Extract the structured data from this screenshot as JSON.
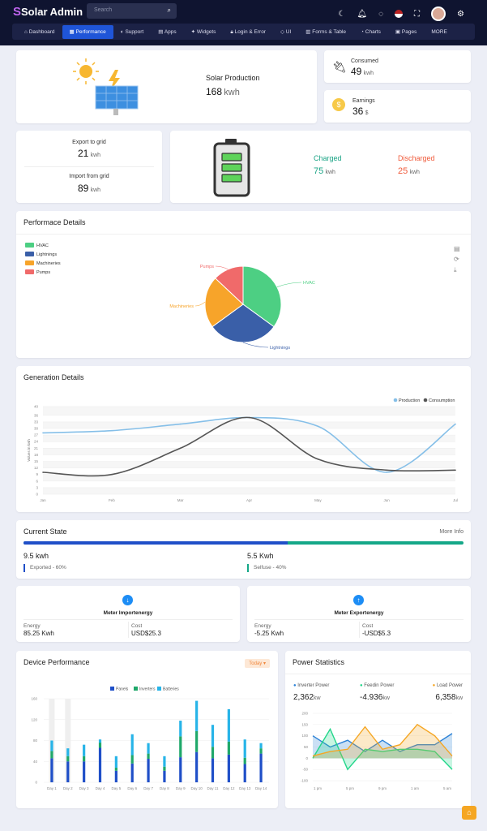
{
  "app": {
    "logo_letter": "S",
    "logo_text": "Solar Admin"
  },
  "search": {
    "placeholder": "Search"
  },
  "nav": {
    "items": [
      "Dashboard",
      "Performance",
      "Support",
      "Apps",
      "Widgets",
      "Login & Error",
      "UI",
      "Forms & Table",
      "Charts",
      "Pages",
      "MORE"
    ]
  },
  "solar": {
    "title": "Solar Production",
    "value": "168",
    "unit": "kwh"
  },
  "consumed": {
    "label": "Consumed",
    "value": "49",
    "unit": "kwh"
  },
  "earnings": {
    "label": "Earnings",
    "value": "36",
    "unit": "$"
  },
  "grid": {
    "export_label": "Export to grid",
    "export_value": "21",
    "export_unit": "kwh",
    "import_label": "Import from grid",
    "import_value": "89",
    "import_unit": "kwh"
  },
  "battery": {
    "charged_label": "Charged",
    "charged_value": "75",
    "charged_unit": "kwh",
    "discharged_label": "Discharged",
    "discharged_value": "25",
    "discharged_unit": "kwh"
  },
  "perf": {
    "title": "Performace Details"
  },
  "generation": {
    "title": "Generation Details",
    "ylabel": "Values in kwh"
  },
  "current": {
    "title": "Current State",
    "more": "More Info",
    "exported_value": "9.5 kwh",
    "exported_label": "Exported - 60%",
    "selfuse_value": "5.5 Kwh",
    "selfuse_label": "Selfuse - 40%",
    "exported_fraction": 0.6
  },
  "meter_import": {
    "title": "Meter Importenergy",
    "energy_label": "Energy",
    "energy_value": "85.25 Kwh",
    "cost_label": "Cost",
    "cost_value": "USD$25.3"
  },
  "meter_export": {
    "title": "Meter Exportenergy",
    "energy_label": "Energy",
    "energy_value": "-5.25 Kwh",
    "cost_label": "Cost",
    "cost_value": "-USD$5.3"
  },
  "device": {
    "title": "Device Performance",
    "filter": "Today"
  },
  "power": {
    "title": "Power Statistics",
    "inverter_label": "Inverter Power",
    "inverter_value": "2,362",
    "inverter_unit": "kw",
    "feedin_label": "Feedin Power",
    "feedin_value": "-4.936",
    "feedin_unit": "kw",
    "load_label": "Load Power",
    "load_value": "6,358",
    "load_unit": "kw"
  },
  "chart_data": [
    {
      "type": "pie",
      "categories": [
        "HVAC",
        "Lightnings",
        "Machineries",
        "Pumps"
      ],
      "values": [
        35,
        30,
        22,
        13
      ],
      "colors": [
        "#4dcf83",
        "#3a5fa8",
        "#f7a42a",
        "#f06a6a"
      ],
      "legend": "top-left"
    },
    {
      "type": "line",
      "categories": [
        "Jan",
        "Feb",
        "Mar",
        "Apr",
        "May",
        "Jun",
        "Jul"
      ],
      "ylim": [
        0,
        40
      ],
      "yticks": [
        0,
        3,
        6,
        9,
        12,
        15,
        18,
        21,
        24,
        27,
        30,
        33,
        36,
        40
      ],
      "ylabel": "Values in kwh",
      "series": [
        {
          "name": "Production",
          "values": [
            28,
            29,
            32,
            35,
            31,
            10,
            32
          ],
          "color": "#85bfe8"
        },
        {
          "name": "Consumption",
          "values": [
            10,
            9,
            21,
            35,
            16,
            11,
            11
          ],
          "color": "#555555"
        }
      ],
      "legend": "top-right"
    },
    {
      "type": "bar",
      "categories": [
        "Day 1",
        "Day 2",
        "Day 3",
        "Day 4",
        "Day 5",
        "Day 6",
        "Day 7",
        "Day 8",
        "Day 9",
        "Day 10",
        "Day 11",
        "Day 12",
        "Day 13",
        "Day 14"
      ],
      "ylim": [
        0,
        160
      ],
      "yticks": [
        0,
        40,
        80,
        120,
        160
      ],
      "series": [
        {
          "name": "Panels",
          "values": [
            46,
            40,
            40,
            66,
            22,
            36,
            45,
            22,
            48,
            58,
            46,
            53,
            35,
            55
          ],
          "color": "#1f4fc8"
        },
        {
          "name": "Inverters",
          "values": [
            14,
            10,
            10,
            10,
            6,
            16,
            10,
            8,
            40,
            40,
            22,
            25,
            12,
            10
          ],
          "color": "#1fa86a"
        },
        {
          "name": "Batteries",
          "values": [
            20,
            15,
            22,
            6,
            22,
            40,
            20,
            20,
            30,
            58,
            42,
            62,
            35,
            10
          ],
          "color": "#27b4e8"
        }
      ],
      "legend": "top"
    },
    {
      "type": "area",
      "categories": [
        "1 pm",
        "5 pm",
        "9 pm",
        "1 am",
        "5 am"
      ],
      "ylim": [
        -100,
        200
      ],
      "yticks": [
        -100,
        -50,
        0,
        50,
        100,
        150,
        200
      ],
      "x": [
        0,
        1,
        2,
        3,
        4,
        5,
        6,
        7,
        8
      ],
      "series": [
        {
          "name": "Inverter Power",
          "values": [
            100,
            50,
            80,
            30,
            80,
            30,
            60,
            60,
            110
          ],
          "color": "#2c82d6"
        },
        {
          "name": "Feedin Power",
          "values": [
            0,
            130,
            -50,
            40,
            30,
            40,
            40,
            30,
            -50
          ],
          "color": "#22d68a"
        },
        {
          "name": "Load Power",
          "values": [
            10,
            30,
            40,
            140,
            40,
            60,
            150,
            100,
            10
          ],
          "color": "#f5a623"
        }
      ]
    }
  ]
}
